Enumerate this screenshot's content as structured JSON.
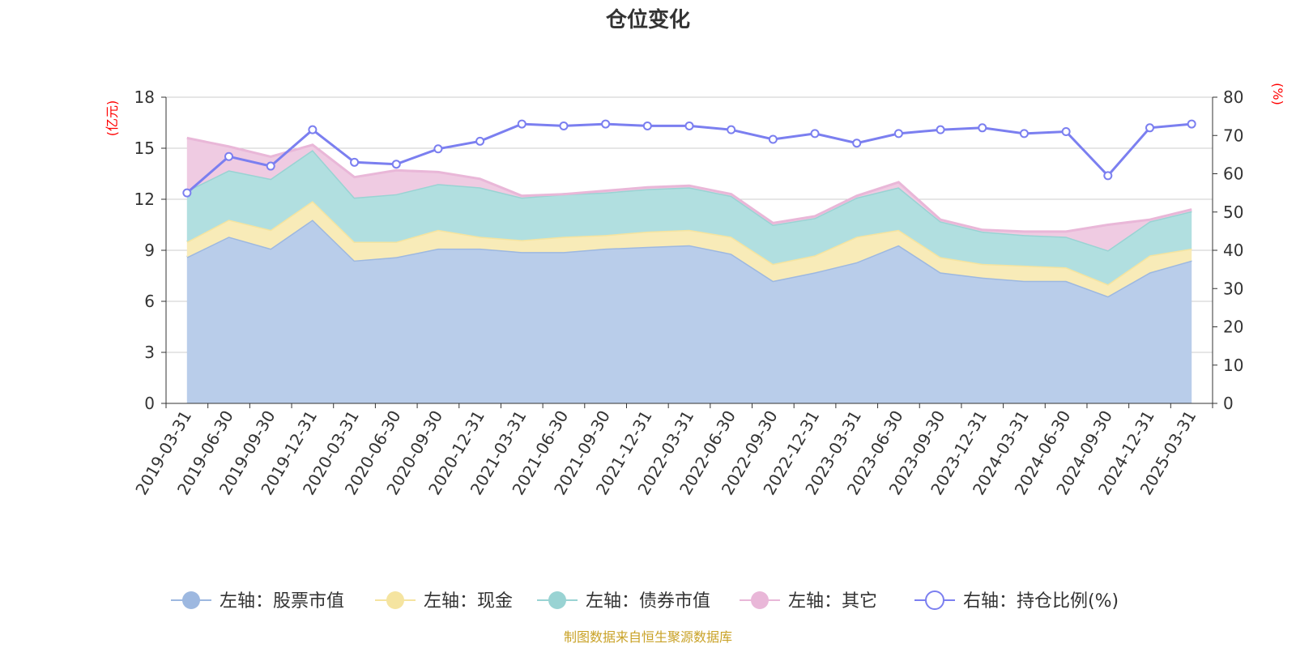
{
  "chart_data": {
    "type": "area",
    "title": "仓位变化",
    "source": "制图数据来自恒生聚源数据库",
    "left_unit": "(亿元)",
    "right_unit": "(%)",
    "left_ylim": [
      0,
      18
    ],
    "left_ticks": [
      "0",
      "3",
      "6",
      "9",
      "12",
      "15",
      "18"
    ],
    "right_ylim": [
      0,
      80
    ],
    "right_ticks": [
      "0",
      "10",
      "20",
      "30",
      "40",
      "50",
      "60",
      "70",
      "80"
    ],
    "grid": true,
    "legend_position": "bottom",
    "categories": [
      "2019-03-31",
      "2019-06-30",
      "2019-09-30",
      "2019-12-31",
      "2020-03-31",
      "2020-06-30",
      "2020-09-30",
      "2020-12-31",
      "2021-03-31",
      "2021-06-30",
      "2021-09-30",
      "2021-12-31",
      "2022-03-31",
      "2022-06-30",
      "2022-09-30",
      "2022-12-31",
      "2023-03-31",
      "2023-06-30",
      "2023-09-30",
      "2023-12-31",
      "2024-03-31",
      "2024-06-30",
      "2024-09-30",
      "2024-12-31",
      "2025-03-31"
    ],
    "series": [
      {
        "name": "左轴：股票市值",
        "axis": "left",
        "kind": "stacked-area",
        "color": "#9db8e0",
        "fill": "#b9cdea",
        "values": [
          8.6,
          9.8,
          9.1,
          10.8,
          8.4,
          8.6,
          9.1,
          9.1,
          8.9,
          8.9,
          9.1,
          9.2,
          9.3,
          8.8,
          7.2,
          7.7,
          8.3,
          9.3,
          7.7,
          7.4,
          7.2,
          7.2,
          6.3,
          7.7,
          8.4
        ]
      },
      {
        "name": "左轴：现金",
        "axis": "left",
        "kind": "stacked-area",
        "color": "#f5e4a0",
        "fill": "#f8ebb8",
        "values": [
          0.9,
          1.0,
          1.1,
          1.1,
          1.1,
          0.9,
          1.1,
          0.7,
          0.7,
          0.9,
          0.8,
          0.9,
          0.9,
          1.0,
          1.0,
          1.0,
          1.5,
          0.9,
          0.9,
          0.8,
          0.9,
          0.8,
          0.7,
          1.0,
          0.7
        ]
      },
      {
        "name": "左轴：债券市值",
        "axis": "left",
        "kind": "stacked-area",
        "color": "#99d3d3",
        "fill": "#b1dfe0",
        "values": [
          3.0,
          2.9,
          3.0,
          3.0,
          2.6,
          2.8,
          2.7,
          2.9,
          2.5,
          2.5,
          2.5,
          2.5,
          2.5,
          2.4,
          2.3,
          2.2,
          2.3,
          2.5,
          2.1,
          1.9,
          1.8,
          1.8,
          2.0,
          2.0,
          2.2
        ]
      },
      {
        "name": "左轴：其它",
        "axis": "left",
        "kind": "stacked-area",
        "color": "#e9b7d8",
        "fill": "#efcbe2",
        "values": [
          3.1,
          1.4,
          1.3,
          0.3,
          1.2,
          1.4,
          0.7,
          0.5,
          0.1,
          0.0,
          0.1,
          0.1,
          0.1,
          0.1,
          0.1,
          0.1,
          0.1,
          0.3,
          0.1,
          0.1,
          0.2,
          0.3,
          1.5,
          0.1,
          0.1
        ]
      },
      {
        "name": "右轴：持仓比例(%)",
        "axis": "right",
        "kind": "line",
        "color": "#7b7ff0",
        "values": [
          55,
          64.5,
          62,
          71.5,
          63,
          62.5,
          66.5,
          68.5,
          73,
          72.5,
          73,
          72.5,
          72.5,
          71.5,
          69,
          70.5,
          68,
          70.5,
          71.5,
          72,
          70.5,
          71,
          59.5,
          72,
          73
        ]
      }
    ]
  }
}
